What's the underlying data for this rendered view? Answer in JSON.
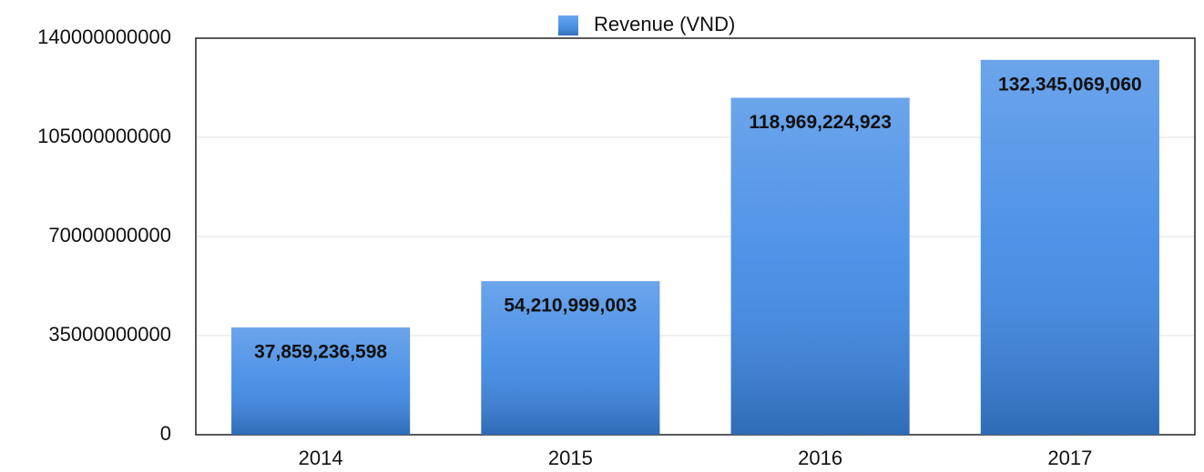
{
  "chart_data": {
    "type": "bar",
    "legend": "Revenue (VND)",
    "categories": [
      "2014",
      "2015",
      "2016",
      "2017"
    ],
    "values": [
      37859236598,
      54210999003,
      118969224923,
      132345069060
    ],
    "value_labels": [
      "37,859,236,598",
      "54,210,999,003",
      "118,969,224,923",
      "132,345,069,060"
    ],
    "color": "#3a86e4",
    "ylim": [
      0,
      140000000000
    ],
    "yticks": [
      0,
      35000000000,
      70000000000,
      105000000000,
      140000000000
    ],
    "grid": true
  }
}
